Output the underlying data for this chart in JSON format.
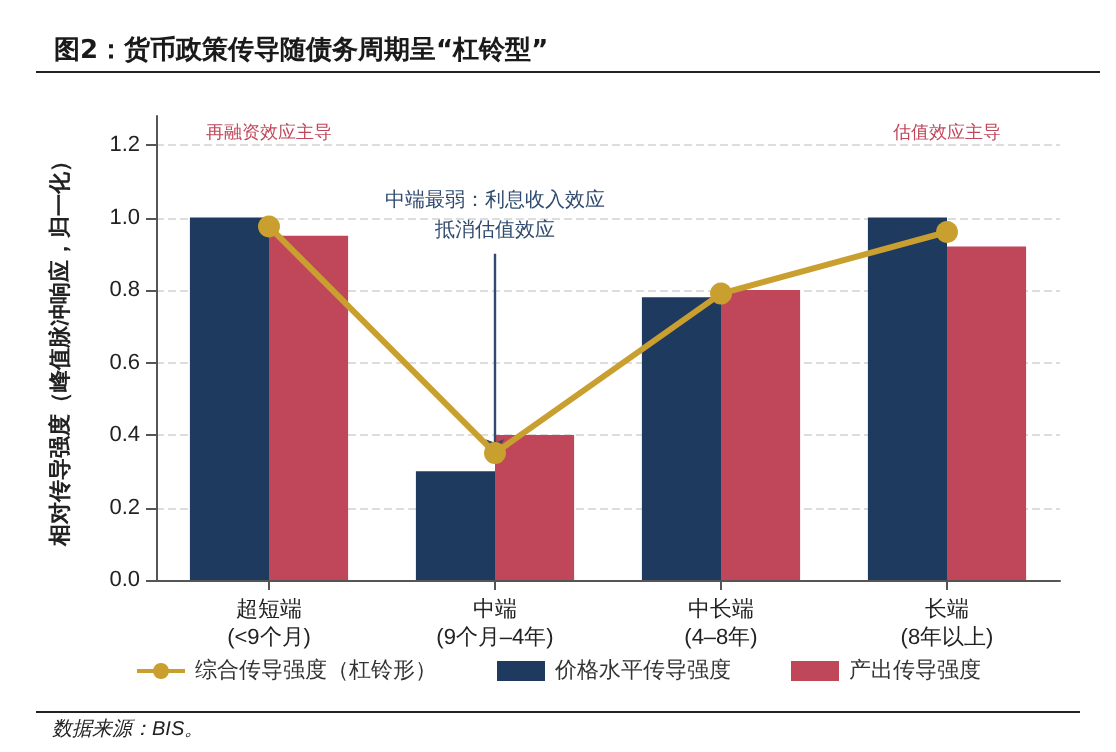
{
  "chart_data": {
    "type": "bar",
    "title": "图2：货币政策传导随债务周期呈“杠铃型”",
    "ylabel": "相对传导强度（峰值脉冲响应，归一化）",
    "categories": [
      "超短端\n(<9个月)",
      "中端\n(9个月–4年)",
      "中长端\n(4–8年)",
      "长端\n(8年以上)"
    ],
    "series": [
      {
        "name": "综合传导强度（杠铃形）",
        "type": "line",
        "color": "#c9a030",
        "values": [
          0.975,
          0.35,
          0.79,
          0.96
        ]
      },
      {
        "name": "价格水平传导强度",
        "color": "#1f3a5f",
        "values": [
          1.0,
          0.3,
          0.78,
          1.0
        ]
      },
      {
        "name": "产出传导强度",
        "color": "#c0475a",
        "values": [
          0.95,
          0.4,
          0.8,
          0.92
        ]
      }
    ],
    "ylim": [
      0,
      1.28
    ],
    "yticks": [
      {
        "value": 0,
        "label": "0.0"
      },
      0.2,
      0.4,
      0.6,
      0.8,
      {
        "value": 1,
        "label": "1.0"
      },
      1.2
    ],
    "grid": "y",
    "legend": "bottom",
    "marker": "circle",
    "annotations": [
      "再融资效应主导",
      "估值效应主导",
      {
        "text": "中端最弱：利息收入效应抵消估值效应",
        "x": "中端\n(9个月–4年)",
        "y": 0.35
      },
      "数据来源：BIS。"
    ]
  }
}
